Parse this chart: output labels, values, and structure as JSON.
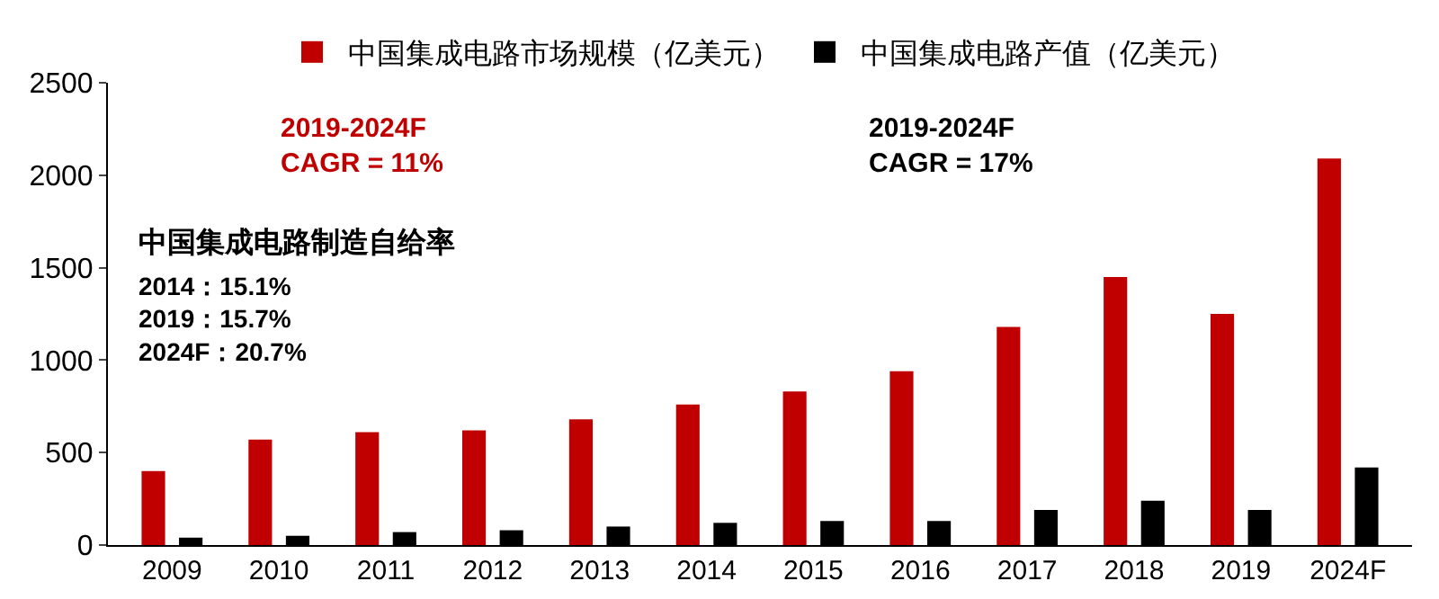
{
  "chart_data": {
    "type": "bar",
    "categories": [
      "2009",
      "2010",
      "2011",
      "2012",
      "2013",
      "2014",
      "2015",
      "2016",
      "2017",
      "2018",
      "2019",
      "2024F"
    ],
    "series": [
      {
        "name": "中国集成电路市场规模（亿美元）",
        "color": "#c00000",
        "values": [
          400,
          570,
          610,
          620,
          680,
          760,
          830,
          940,
          1180,
          1450,
          1250,
          2090
        ]
      },
      {
        "name": "中国集成电路产值（亿美元）",
        "color": "#000000",
        "values": [
          40,
          50,
          70,
          80,
          100,
          120,
          130,
          130,
          190,
          240,
          190,
          420
        ]
      }
    ],
    "ylim": [
      0,
      2500
    ],
    "yticks": [
      0,
      500,
      1000,
      1500,
      2000,
      2500
    ],
    "grid": false,
    "legend": "top",
    "annotations": [
      "2019-2024F\nCAGR = 11%",
      "2019-2024F\nCAGR = 17%",
      "中国集成电路制造自给率",
      "2014：15.1%\n2019：15.7%\n2024F：20.7%"
    ]
  }
}
